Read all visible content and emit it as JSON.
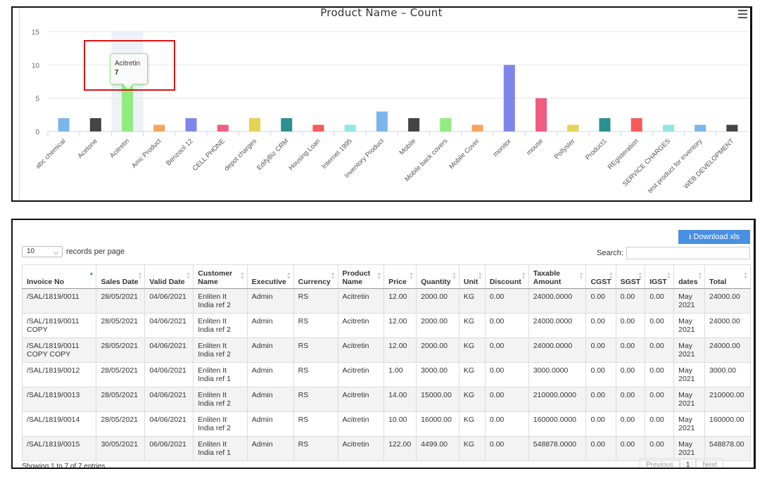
{
  "chart_data": {
    "type": "bar",
    "title": "Product Name – Count",
    "categories": [
      "abc chemical",
      "Acetone",
      "Acitretin",
      "Amc Product",
      "Benzocil 12",
      "CELL PHONE",
      "depot charges",
      "EdifyBiz CRM",
      "Housing Loan",
      "Internet 1995",
      "Inventory Product",
      "Mobile",
      "Mobile back covers",
      "Mobile Cover",
      "monitor",
      "mouse",
      "Pollyster",
      "Product1",
      "REgisteration",
      "SERVICE CHARGES",
      "test product for inventory",
      "WEB DEVELOPMENT"
    ],
    "values": [
      2,
      2,
      7,
      1,
      2,
      1,
      2,
      2,
      1,
      1,
      3,
      2,
      2,
      1,
      10,
      5,
      1,
      2,
      2,
      1,
      1,
      1
    ],
    "colors": [
      "#7cb5ec",
      "#434348",
      "#90ed7d",
      "#f7a35c",
      "#8085e9",
      "#f15c80",
      "#e4d354",
      "#2b908f",
      "#f45b5b",
      "#91e8e1",
      "#7cb5ec",
      "#434348",
      "#90ed7d",
      "#f7a35c",
      "#8085e9",
      "#f15c80",
      "#e4d354",
      "#2b908f",
      "#f45b5b",
      "#91e8e1",
      "#7cb5ec",
      "#434348"
    ],
    "y_ticks": [
      "0",
      "5",
      "10",
      "15"
    ],
    "ylim": [
      0,
      15
    ],
    "highlighted_index": 2,
    "tooltip": {
      "label": "Acitretin",
      "value": "7"
    },
    "menu_icon": "hamburger-icon"
  },
  "table": {
    "download_label": "Download xls",
    "download_icon": "download-icon",
    "length_value": "10",
    "length_suffix": "records per page",
    "search_label": "Search:",
    "columns": [
      "Invoice No",
      "Sales Date",
      "Valid Date",
      "Customer Name",
      "Executive",
      "Currency",
      "Product Name",
      "Price",
      "Quantity",
      "Unit",
      "Discount",
      "Taxable Amount",
      "CGST",
      "SGST",
      "IGST",
      "dates",
      "Total"
    ],
    "rows": [
      [
        "/SAL/1819/0011",
        "28/05/2021",
        "04/06/2021",
        "Enliten It India ref 2",
        "Admin",
        "RS",
        "Acitretin",
        "12.00",
        "2000.00",
        "KG",
        "0.00",
        "24000.0000",
        "0.00",
        "0.00",
        "0.00",
        "May 2021",
        "24000.00"
      ],
      [
        "/SAL/1819/0011 COPY",
        "28/05/2021",
        "04/06/2021",
        "Enliten It India ref 2",
        "Admin",
        "RS",
        "Acitretin",
        "12.00",
        "2000.00",
        "KG",
        "0.00",
        "24000.0000",
        "0.00",
        "0.00",
        "0.00",
        "May 2021",
        "24000.00"
      ],
      [
        "/SAL/1819/0011 COPY COPY",
        "28/05/2021",
        "04/06/2021",
        "Enliten It India ref 2",
        "Admin",
        "RS",
        "Acitretin",
        "12.00",
        "2000.00",
        "KG",
        "0.00",
        "24000.0000",
        "0.00",
        "0.00",
        "0.00",
        "May 2021",
        "24000.00"
      ],
      [
        "/SAL/1819/0012",
        "28/05/2021",
        "04/06/2021",
        "Enliten It India ref 1",
        "Admin",
        "RS",
        "Acitretin",
        "1.00",
        "3000.00",
        "KG",
        "0.00",
        "3000.0000",
        "0.00",
        "0.00",
        "0.00",
        "May 2021",
        "3000.00"
      ],
      [
        "/SAL/1819/0013",
        "28/05/2021",
        "04/06/2021",
        "Enliten It India ref 2",
        "Admin",
        "RS",
        "Acitretin",
        "14.00",
        "15000.00",
        "KG",
        "0.00",
        "210000.0000",
        "0.00",
        "0.00",
        "0.00",
        "May 2021",
        "210000.00"
      ],
      [
        "/SAL/1819/0014",
        "28/05/2021",
        "04/06/2021",
        "Enliten It India ref 2",
        "Admin",
        "RS",
        "Acitretin",
        "10.00",
        "16000.00",
        "KG",
        "0.00",
        "160000.0000",
        "0.00",
        "0.00",
        "0.00",
        "May 2021",
        "160000.00"
      ],
      [
        "/SAL/1819/0015",
        "30/05/2021",
        "06/06/2021",
        "Enliten It India ref 1",
        "Admin",
        "RS",
        "Acitretin",
        "122.00",
        "4499.00",
        "KG",
        "0.00",
        "548878.0000",
        "0.00",
        "0.00",
        "0.00",
        "May 2021",
        "548878.00"
      ]
    ],
    "info": "Showing 1 to 7 of 7 entries",
    "pager": {
      "previous": "Previous",
      "current": "1",
      "next": "Next"
    }
  }
}
